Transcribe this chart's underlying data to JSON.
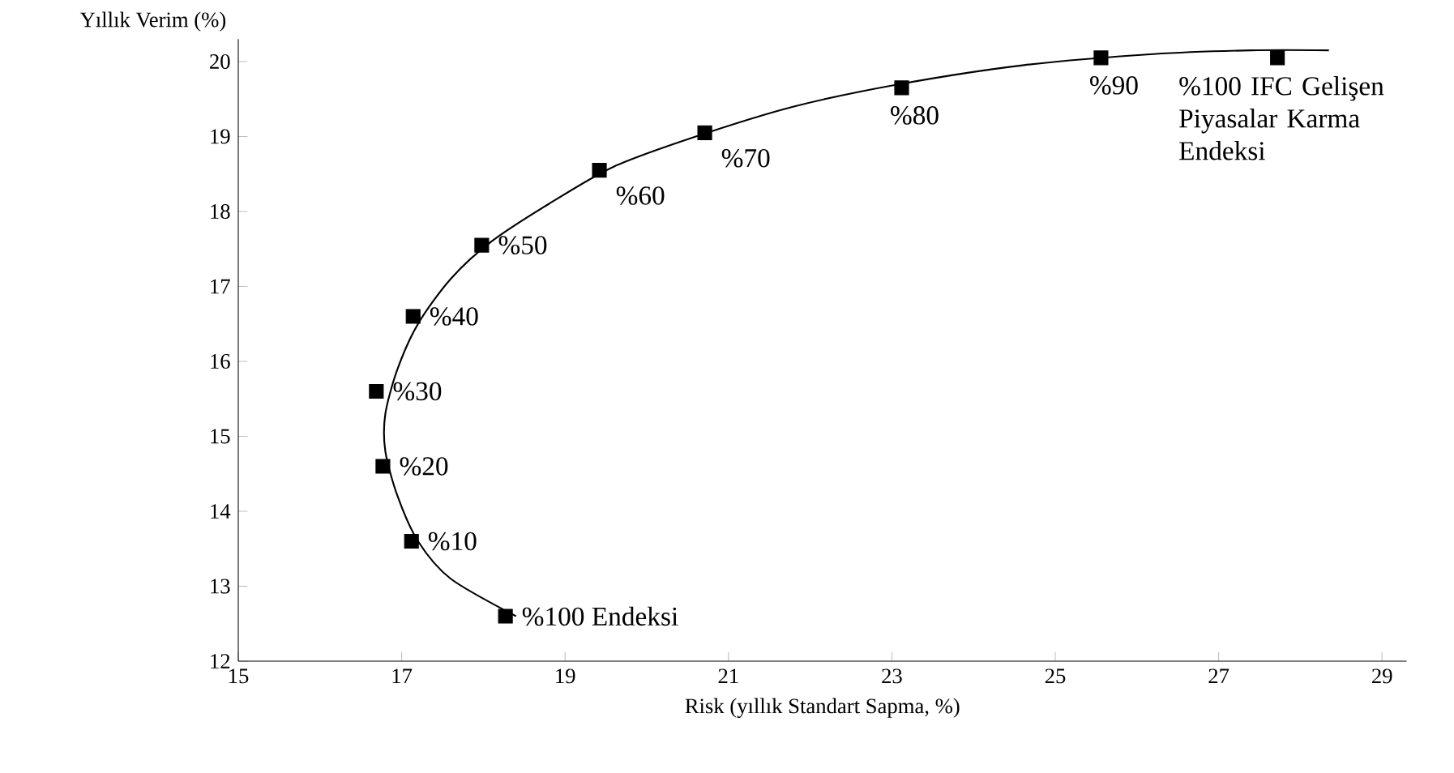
{
  "chart_data": {
    "type": "scatter",
    "xlabel": "Risk (yıllık Standart Sapma, %)",
    "ylabel": "Yıllık Verim (%)",
    "xlim": [
      15,
      29.3
    ],
    "ylim": [
      12,
      20.3
    ],
    "xticks": [
      15,
      17,
      19,
      21,
      23,
      25,
      27,
      29
    ],
    "yticks": [
      12,
      13,
      14,
      15,
      16,
      17,
      18,
      19,
      20
    ],
    "marker": "square",
    "grid": false,
    "series": [
      {
        "type": "line",
        "marker": "none",
        "color": "#000000",
        "x": [
          18.4,
          17.6,
          17.2,
          16.95,
          16.8,
          16.8,
          16.95,
          17.2,
          17.6,
          18.1,
          18.8,
          19.6,
          20.6,
          21.8,
          23.1,
          24.6,
          26.2,
          27.4,
          28.35
        ],
        "values": [
          12.6,
          13.1,
          13.6,
          14.2,
          14.8,
          15.3,
          15.9,
          16.5,
          17.1,
          17.6,
          18.1,
          18.6,
          19.0,
          19.4,
          19.7,
          19.95,
          20.1,
          20.15,
          20.15
        ]
      },
      {
        "color": "#000000",
        "x": [
          18.27,
          17.12,
          16.77,
          16.69,
          17.14,
          17.98,
          19.42,
          20.71,
          23.12,
          25.56,
          27.72
        ],
        "values": [
          12.6,
          13.6,
          14.6,
          15.6,
          16.6,
          17.55,
          18.55,
          19.05,
          19.65,
          20.05,
          20.05
        ]
      }
    ],
    "annotations": [
      {
        "text": "%100 Endeksi",
        "x": 18.27,
        "y": 12.6
      },
      {
        "text": "%10",
        "x": 17.12,
        "y": 13.6
      },
      {
        "text": "%20",
        "x": 16.77,
        "y": 14.6
      },
      {
        "text": "%30",
        "x": 16.69,
        "y": 15.6
      },
      {
        "text": "%40",
        "x": 17.14,
        "y": 16.6
      },
      {
        "text": "%50",
        "x": 17.98,
        "y": 17.55
      },
      {
        "text": "%60",
        "x": 19.42,
        "y": 18.55
      },
      {
        "text": "%70",
        "x": 20.71,
        "y": 19.05
      },
      {
        "text": "%80",
        "x": 23.12,
        "y": 19.65
      },
      {
        "text": "%90",
        "x": 25.56,
        "y": 20.05
      },
      {
        "text": "%100 IFC Gelişen Piyasalar Karma Endeksi",
        "x": 27.72,
        "y": 20.05
      }
    ]
  }
}
